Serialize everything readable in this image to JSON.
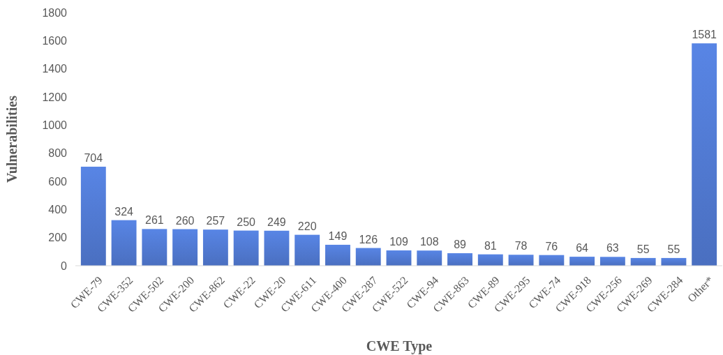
{
  "chart_data": {
    "type": "bar",
    "xlabel": "CWE Type",
    "ylabel": "Vulnerabilities",
    "categories": [
      "CWE-79",
      "CWE-352",
      "CWE-502",
      "CWE-200",
      "CWE-862",
      "CWE-22",
      "CWE-20",
      "CWE-611",
      "CWE-400",
      "CWE-287",
      "CWE-522",
      "CWE-94",
      "CWE-863",
      "CWE-89",
      "CWE-295",
      "CWE-74",
      "CWE-918",
      "CWE-256",
      "CWE-269",
      "CWE-284",
      "Other*"
    ],
    "values": [
      704,
      324,
      261,
      260,
      257,
      250,
      249,
      220,
      149,
      126,
      109,
      108,
      89,
      81,
      78,
      76,
      64,
      63,
      55,
      55,
      1581
    ],
    "color": "#4a6fc0",
    "ylim": [
      0,
      1800
    ],
    "yticks": [
      0,
      200,
      400,
      600,
      800,
      1000,
      1200,
      1400,
      1600,
      1800
    ],
    "data_labels": true,
    "grid": false
  }
}
